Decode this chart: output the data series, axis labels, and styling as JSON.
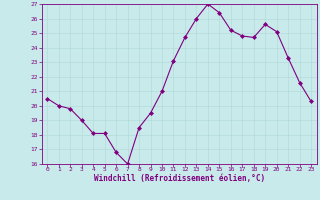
{
  "x": [
    0,
    1,
    2,
    3,
    4,
    5,
    6,
    7,
    8,
    9,
    10,
    11,
    12,
    13,
    14,
    15,
    16,
    17,
    18,
    19,
    20,
    21,
    22,
    23
  ],
  "y": [
    20.5,
    20.0,
    19.8,
    19.0,
    18.1,
    18.1,
    16.8,
    16.0,
    18.5,
    19.5,
    21.0,
    23.1,
    24.7,
    26.0,
    27.0,
    26.4,
    25.2,
    24.8,
    24.7,
    25.6,
    25.1,
    23.3,
    21.6,
    20.3
  ],
  "line_color": "#800080",
  "marker": "D",
  "marker_size": 2,
  "bg_color": "#c8eaea",
  "grid_color": "#b0d8d8",
  "xlabel": "Windchill (Refroidissement éolien,°C)",
  "xlabel_color": "#800080",
  "tick_color": "#800080",
  "ylim": [
    16,
    27
  ],
  "yticks": [
    16,
    17,
    18,
    19,
    20,
    21,
    22,
    23,
    24,
    25,
    26,
    27
  ],
  "xticks": [
    0,
    1,
    2,
    3,
    4,
    5,
    6,
    7,
    8,
    9,
    10,
    11,
    12,
    13,
    14,
    15,
    16,
    17,
    18,
    19,
    20,
    21,
    22,
    23
  ],
  "spine_color": "#800080"
}
